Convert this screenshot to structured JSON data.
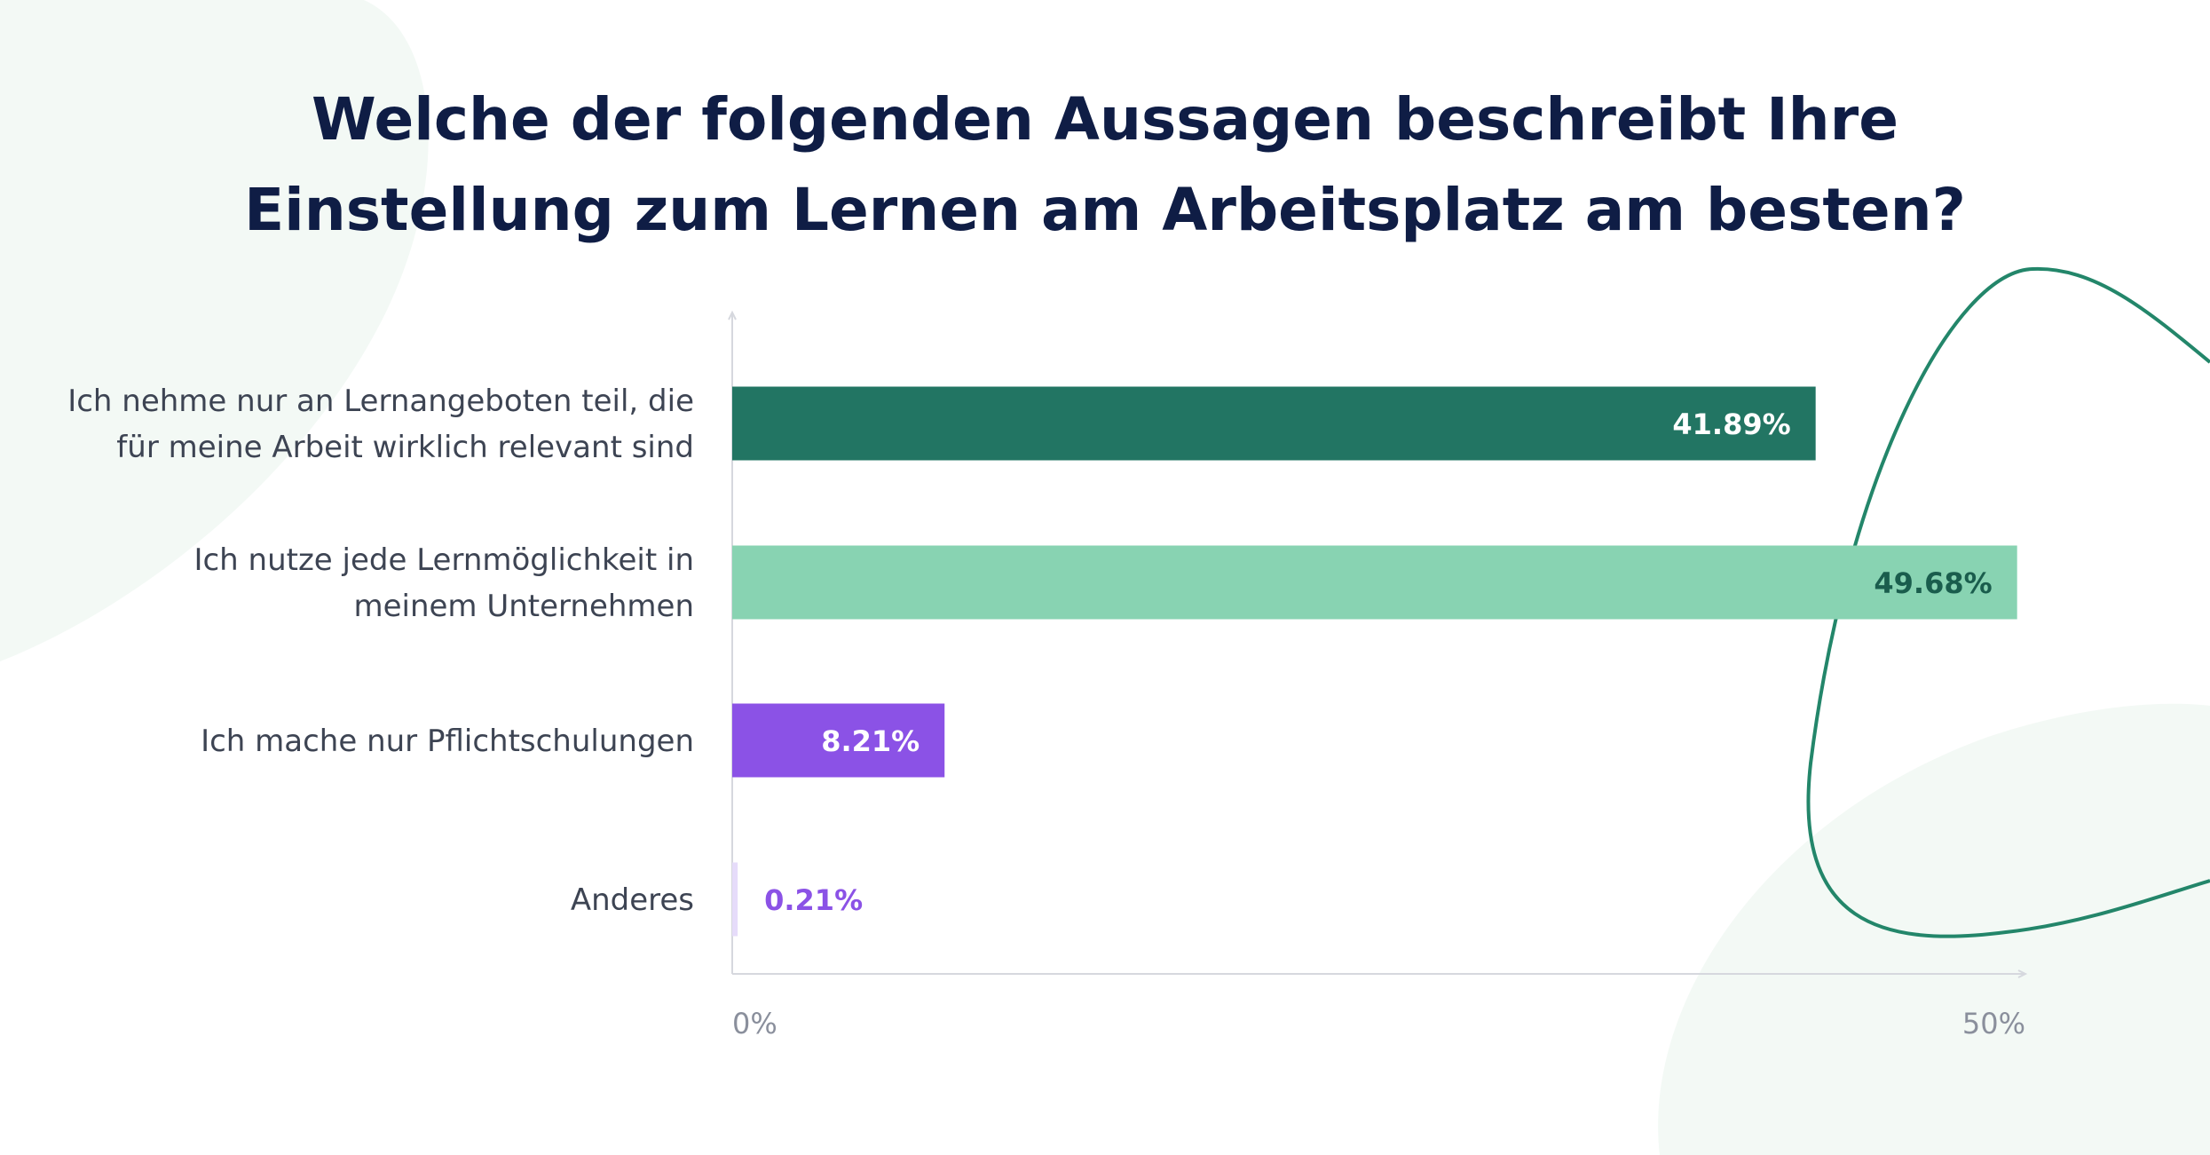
{
  "chart_data": {
    "type": "bar",
    "orientation": "horizontal",
    "title_lines": [
      "Welche der folgenden Aussagen beschreibt Ihre",
      "Einstellung zum Lernen am Arbeitsplatz am besten?"
    ],
    "categories": [
      [
        "Ich nehme nur an Lernangeboten teil, die",
        "für meine Arbeit wirklich relevant sind"
      ],
      [
        "Ich nutze jede Lernmöglichkeit in",
        "meinem Unternehmen"
      ],
      [
        "Ich mache nur Pflichtschulungen"
      ],
      [
        "Anderes"
      ]
    ],
    "values": [
      41.89,
      49.68,
      8.21,
      0.21
    ],
    "value_labels": [
      "41.89%",
      "49.68%",
      "8.21%",
      "0.21%"
    ],
    "xlim": [
      0,
      50
    ],
    "x_ticks": [
      {
        "value": 0,
        "label": "0%"
      },
      {
        "value": 50,
        "label": "50%"
      }
    ],
    "grid": false,
    "legend": "none",
    "bar_colors": [
      "#227563",
      "#88d3b2",
      "#8b52e6",
      "#e6dcfa"
    ],
    "value_label_colors": [
      "#ffffff",
      "#1a5d4d",
      "#ffffff",
      "#8b52e6"
    ]
  },
  "colors": {
    "title": "#0f1d45",
    "category_label": "#3d4453",
    "tick_label": "#8a8f9c",
    "axis": "#d6d8de",
    "decor_blob": "#f3f9f5",
    "decor_outline": "#23866a"
  }
}
